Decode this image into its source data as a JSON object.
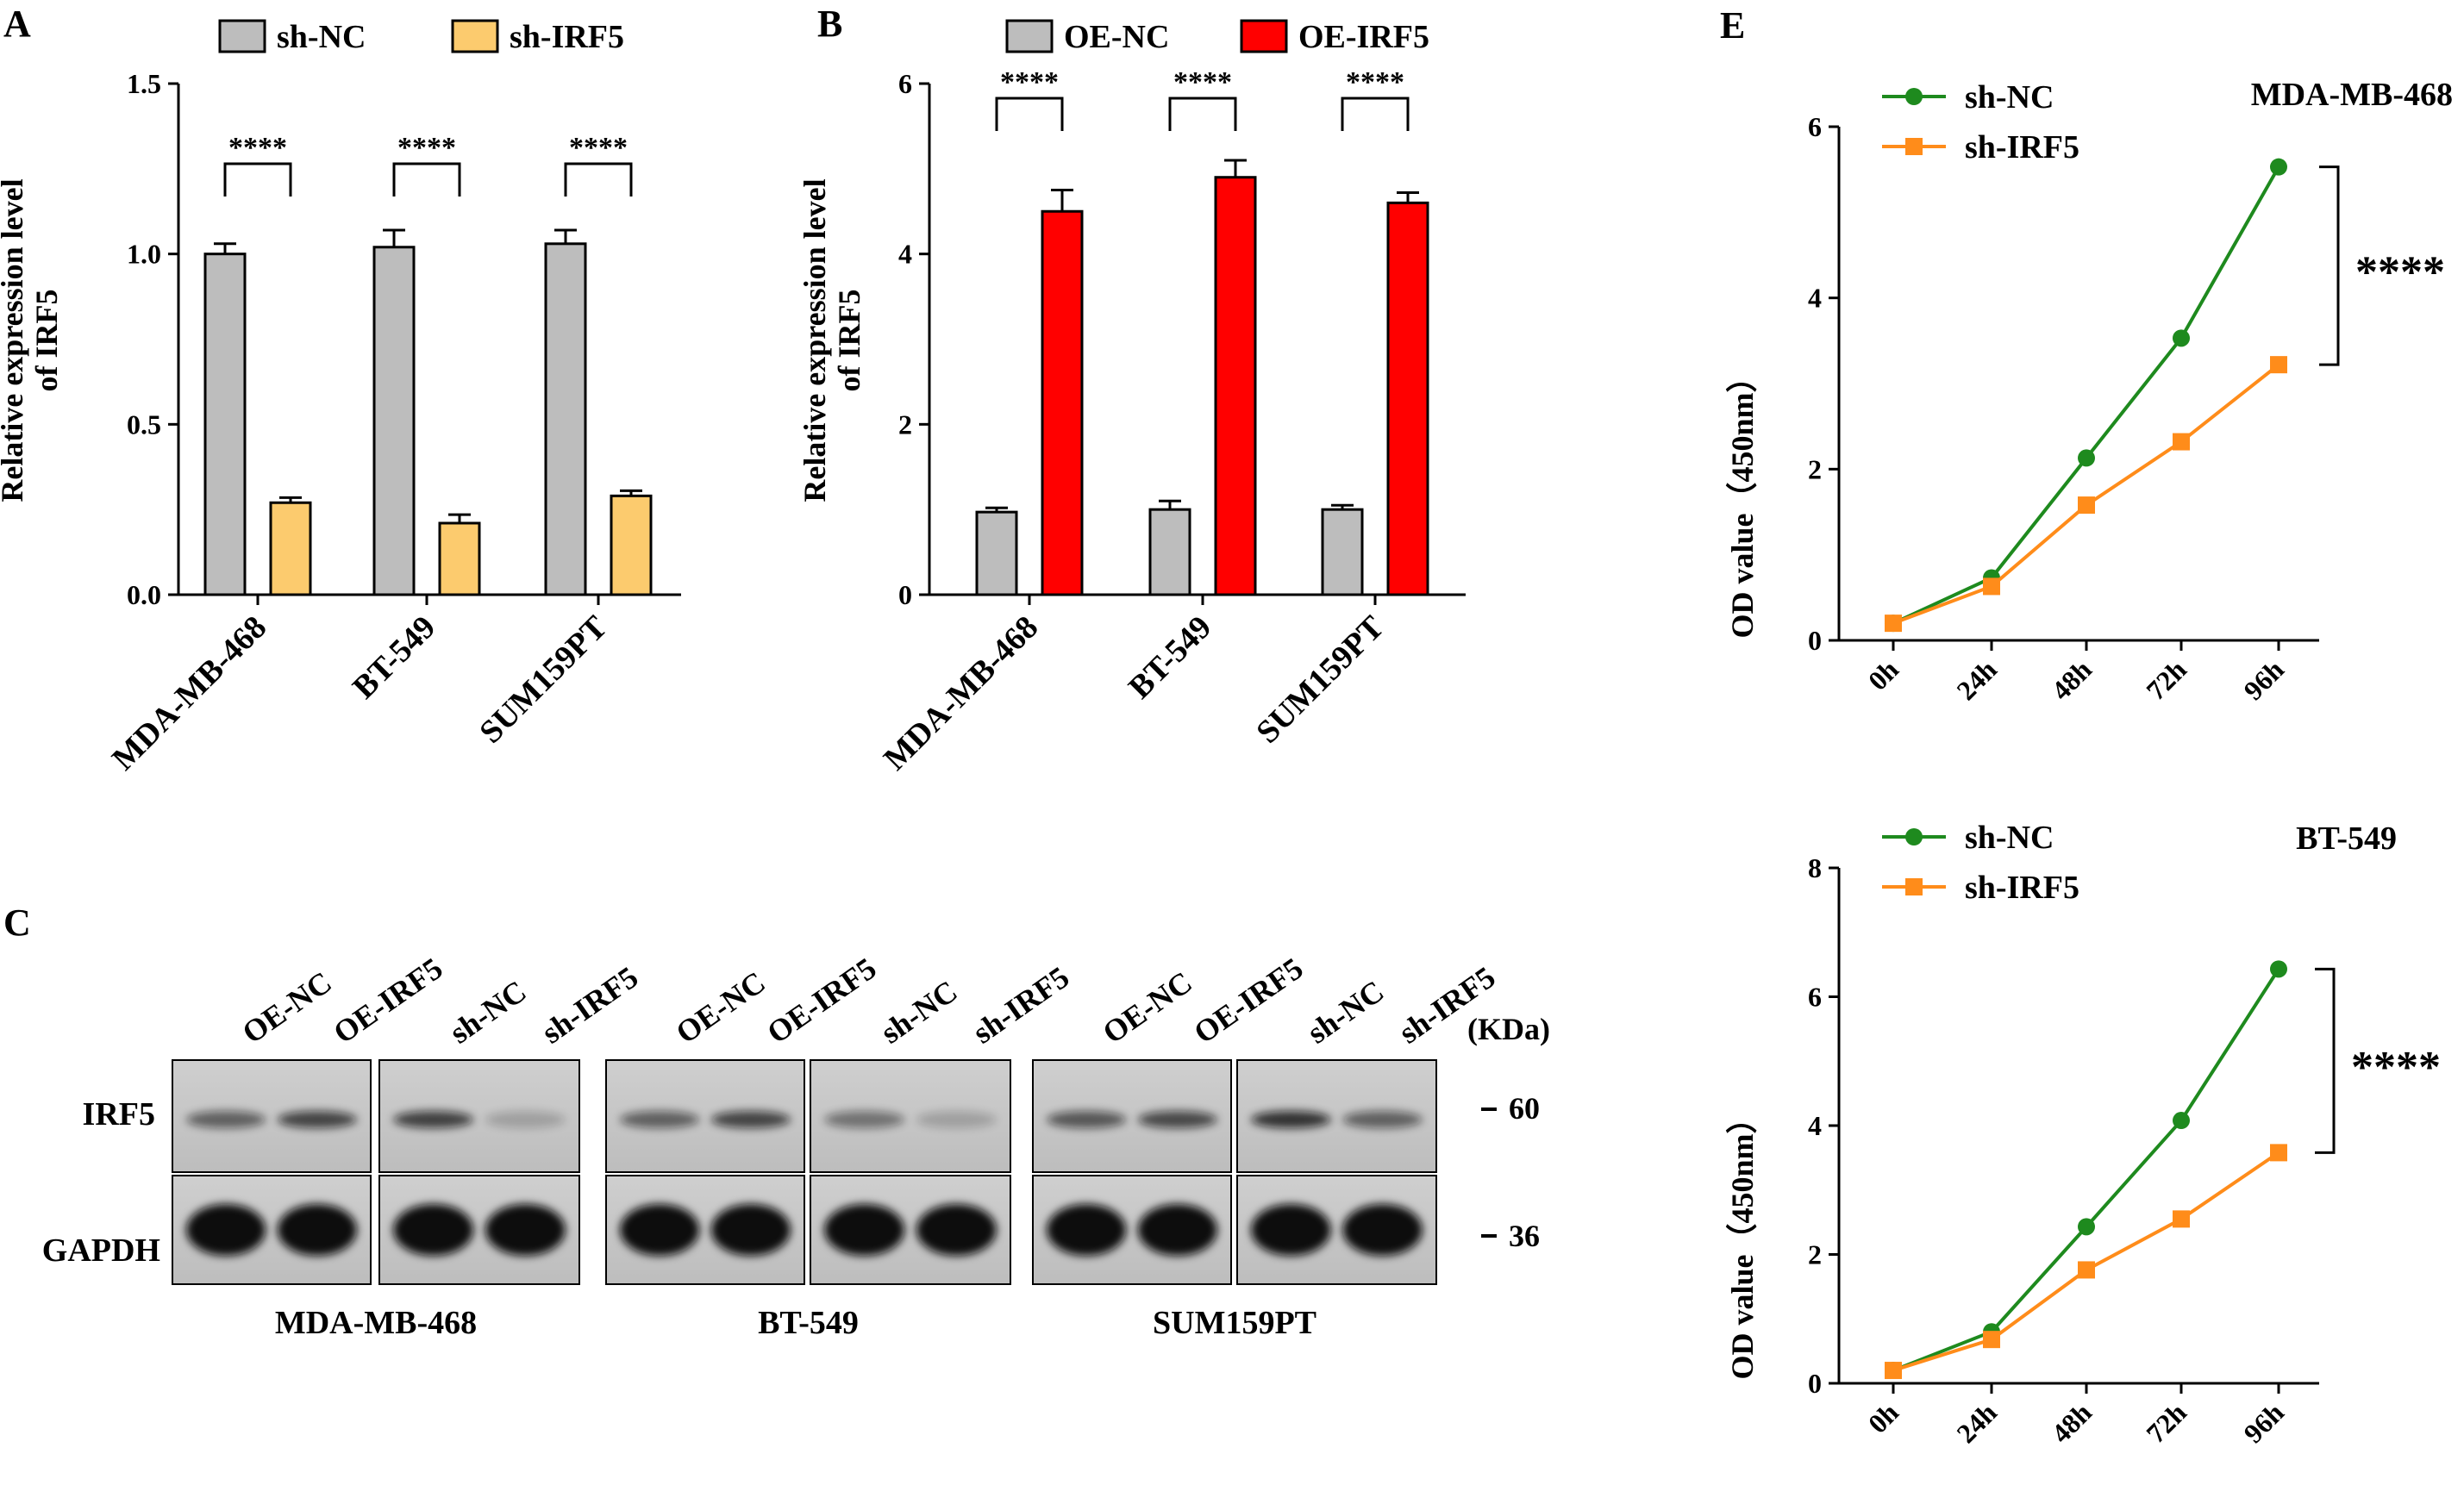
{
  "chart_data": [
    {
      "panel": "A",
      "type": "bar",
      "categories": [
        "MDA-MB-468",
        "BT-549",
        "SUM159PT"
      ],
      "series": [
        {
          "name": "sh-NC",
          "color": "#bdbdbd",
          "values": [
            1.0,
            1.02,
            1.03
          ],
          "errors": [
            0.03,
            0.05,
            0.04
          ]
        },
        {
          "name": "sh-IRF5",
          "color": "#fccb6e",
          "values": [
            0.27,
            0.21,
            0.29
          ],
          "errors": [
            0.015,
            0.025,
            0.015
          ]
        }
      ],
      "ylabel_lines": [
        "Relative expression level",
        "of IRF5"
      ],
      "ylim": [
        0,
        1.5
      ],
      "yticks": [
        0.0,
        0.5,
        1.0,
        1.5
      ],
      "ytick_labels": [
        "0.0",
        "0.5",
        "1.0",
        "1.5"
      ],
      "significance": [
        "****",
        "****",
        "****"
      ]
    },
    {
      "panel": "B",
      "type": "bar",
      "categories": [
        "MDA-MB-468",
        "BT-549",
        "SUM159PT"
      ],
      "series": [
        {
          "name": "OE-NC",
          "color": "#bdbdbd",
          "values": [
            0.97,
            1.0,
            1.0
          ],
          "errors": [
            0.05,
            0.1,
            0.05
          ]
        },
        {
          "name": "OE-IRF5",
          "color": "#ff0000",
          "values": [
            4.5,
            4.9,
            4.6
          ],
          "errors": [
            0.25,
            0.2,
            0.12
          ]
        }
      ],
      "ylabel_lines": [
        "Relative expression level",
        "of IRF5"
      ],
      "ylim": [
        0,
        6
      ],
      "yticks": [
        0,
        2,
        4,
        6
      ],
      "ytick_labels": [
        "0",
        "2",
        "4",
        "6"
      ],
      "significance": [
        "****",
        "****",
        "****"
      ]
    },
    {
      "panel": "E-top",
      "type": "line",
      "title": "MDA-MB-468",
      "categories": [
        "0h",
        "24h",
        "48h",
        "72h",
        "96h"
      ],
      "series": [
        {
          "name": "sh-NC",
          "color": "#1e8a1e",
          "marker": "circle",
          "values": [
            0.2,
            0.73,
            2.13,
            3.53,
            5.53
          ]
        },
        {
          "name": "sh-IRF5",
          "color": "#ff8c1a",
          "marker": "square",
          "values": [
            0.2,
            0.63,
            1.58,
            2.32,
            3.22
          ]
        }
      ],
      "ylabel": "OD value（450nm）",
      "ylim": [
        0,
        6
      ],
      "yticks": [
        0,
        2,
        4,
        6
      ],
      "ytick_labels": [
        "0",
        "2",
        "4",
        "6"
      ],
      "significance": "****"
    },
    {
      "panel": "E-bottom",
      "type": "line",
      "title": "BT-549",
      "categories": [
        "0h",
        "24h",
        "48h",
        "72h",
        "96h"
      ],
      "series": [
        {
          "name": "sh-NC",
          "color": "#1e8a1e",
          "marker": "circle",
          "values": [
            0.2,
            0.8,
            2.43,
            4.08,
            6.43
          ]
        },
        {
          "name": "sh-IRF5",
          "color": "#ff8c1a",
          "marker": "square",
          "values": [
            0.2,
            0.68,
            1.76,
            2.55,
            3.58
          ]
        }
      ],
      "ylabel": "OD value（450nm）",
      "ylim": [
        0,
        8
      ],
      "yticks": [
        0,
        2,
        4,
        6,
        8
      ],
      "ytick_labels": [
        "0",
        "2",
        "4",
        "6",
        "8"
      ],
      "significance": "****"
    }
  ],
  "panel_letters": {
    "a": "A",
    "b": "B",
    "c": "C",
    "e": "E"
  },
  "blot": {
    "group1_lanes": [
      "OE-NC",
      "OE-IRF5"
    ],
    "group2_lanes": [
      "sh-NC",
      "sh-IRF5"
    ],
    "cell_lines": [
      "MDA-MB-468",
      "BT-549",
      "SUM159PT"
    ],
    "rows": [
      "IRF5",
      "GAPDH"
    ],
    "unit": "(KDa)",
    "markers": [
      "60",
      "36"
    ],
    "irf5_band_intensity": [
      [
        0.55,
        0.7,
        0.72,
        0.2
      ],
      [
        0.55,
        0.7,
        0.45,
        0.2
      ],
      [
        0.6,
        0.68,
        0.8,
        0.55
      ]
    ],
    "gapdh_band_intensity": [
      [
        1.0,
        1.0,
        1.0,
        1.0
      ],
      [
        1.0,
        1.0,
        1.0,
        1.0
      ],
      [
        1.0,
        1.0,
        1.0,
        1.0
      ]
    ]
  }
}
